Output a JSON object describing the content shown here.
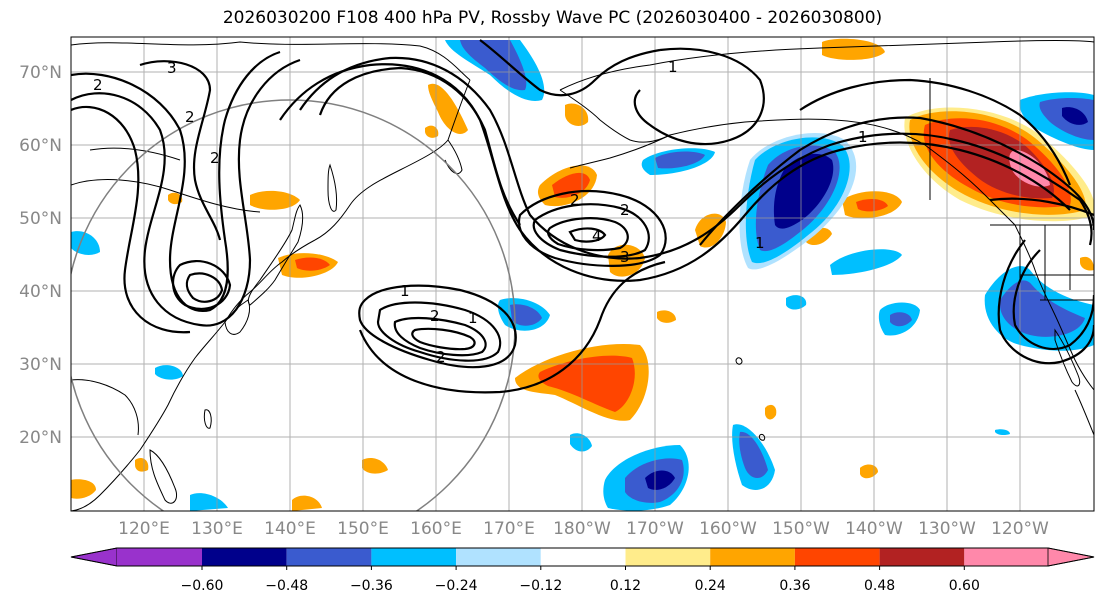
{
  "title": "2026030200 F108 400 hPa PV, Rossby Wave PC (2026030400 - 2026030800)",
  "lat_labels": [
    "70°N",
    "60°N",
    "50°N",
    "40°N",
    "30°N",
    "20°N"
  ],
  "lon_labels": [
    "120°E",
    "130°E",
    "140°E",
    "150°E",
    "160°E",
    "170°E",
    "180°W",
    "170°W",
    "160°W",
    "150°W",
    "140°W",
    "130°W",
    "120°W"
  ],
  "colorbar": {
    "tick_labels": [
      "−0.60",
      "−0.48",
      "−0.36",
      "−0.24",
      "−0.12",
      "0.12",
      "0.24",
      "0.36",
      "0.48",
      "0.60"
    ],
    "colors": [
      "#9932cc",
      "#00008b",
      "#3a5bcf",
      "#00bfff",
      "#b0e2ff",
      "#ffffff",
      "#ffec8b",
      "#ffa500",
      "#ff4500",
      "#b22222",
      "#ff88aa"
    ]
  },
  "contour_labels": [
    "3",
    "2",
    "2",
    "1",
    "2",
    "2",
    "4",
    "3",
    "1",
    "2",
    "2",
    "1",
    "1",
    "1",
    "2"
  ],
  "colors": {
    "contour": "#000000",
    "grid": "#999999",
    "coast": "#000000",
    "circle": "#808080"
  }
}
